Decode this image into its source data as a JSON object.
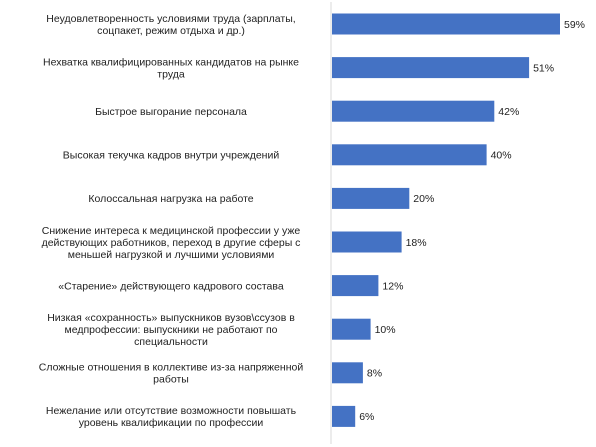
{
  "chart_data": {
    "type": "bar",
    "orientation": "horizontal",
    "categories": [
      [
        "Неудовлетворенность условиями труда (зарплаты,",
        "соцпакет, режим отдыха и др.)"
      ],
      [
        "Нехватка квалифицированных кандидатов на рынке",
        "труда"
      ],
      [
        "Быстрое выгорание персонала"
      ],
      [
        "Высокая текучка кадров внутри учреждений"
      ],
      [
        "Колоссальная нагрузка на работе"
      ],
      [
        "Снижение интереса к медицинской профессии у уже",
        "действующих работников, переход в другие сферы с",
        "меньшей нагрузкой и лучшими условиями"
      ],
      [
        "«Старение» действующего кадрового состава"
      ],
      [
        "Низкая «сохранность» выпускников вузов\\ссузов в",
        "медпрофессии: выпускники не работают по",
        "специальности"
      ],
      [
        "Сложные отношения в коллективе из-за напряженной",
        "работы"
      ],
      [
        "Нежелание или отсутствие возможности повышать",
        "уровень квалификации по профессии"
      ]
    ],
    "values": [
      59,
      51,
      42,
      40,
      20,
      18,
      12,
      10,
      8,
      6
    ],
    "data_labels": [
      "59%",
      "51%",
      "42%",
      "40%",
      "20%",
      "18%",
      "12%",
      "10%",
      "8%",
      "6%"
    ],
    "xlim": [
      0,
      59
    ],
    "grid": false,
    "legend": "none",
    "title": "",
    "xlabel": "",
    "ylabel": ""
  },
  "colors": {
    "bar": "#4472c4",
    "axis": "#d9d9d9",
    "text": "#222222"
  }
}
